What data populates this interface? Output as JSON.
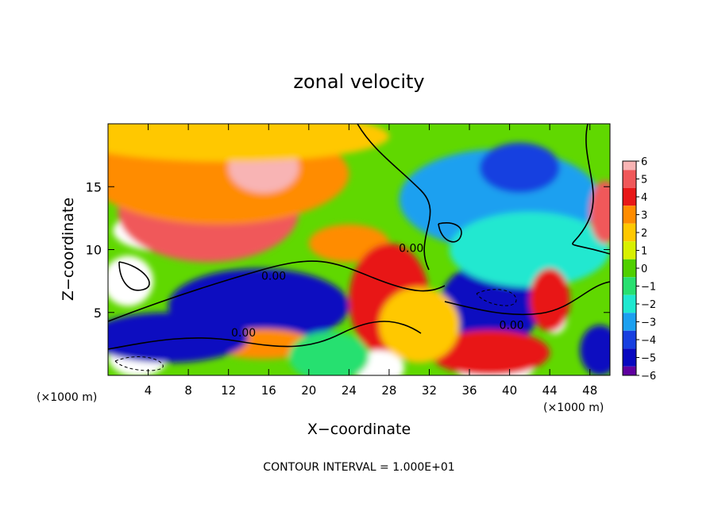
{
  "chart_data": {
    "type": "heatmap",
    "title": "zonal velocity",
    "xlabel": "X−coordinate",
    "ylabel": "Z−coordinate",
    "x_unit_left": "(×1000 m)",
    "x_unit_right": "(×1000 m)",
    "footer": "CONTOUR INTERVAL = 1.000E+01",
    "xlim": [
      0,
      50
    ],
    "ylim": [
      0,
      20
    ],
    "x_ticks": [
      4,
      8,
      12,
      16,
      20,
      24,
      28,
      32,
      36,
      40,
      44,
      48
    ],
    "y_ticks": [
      5,
      10,
      15
    ],
    "colorbar": {
      "ticks": [
        "6",
        "5",
        "4",
        "3",
        "2",
        "1",
        "0",
        "−1",
        "−2",
        "−3",
        "−4",
        "−5",
        "−6"
      ],
      "range": [
        -6,
        6
      ],
      "colors": [
        "#f8b4b4",
        "#f0585a",
        "#e81818",
        "#ff8c00",
        "#ffc800",
        "#d8f000",
        "#50d000",
        "#28e070",
        "#20e8d0",
        "#1ca0f0",
        "#1840e0",
        "#0808c0",
        "#6000a0",
        "#b000b0"
      ]
    },
    "contour_labels": [
      {
        "text": "0.00",
        "x": 16.5,
        "y": 7.6
      },
      {
        "text": "0.00",
        "x": 13.5,
        "y": 3.1
      },
      {
        "text": "0.00",
        "x": 40.2,
        "y": 3.7
      },
      {
        "text": "0.00",
        "x": 30.2,
        "y": 9.8
      }
    ],
    "field_features": [
      {
        "value": 7,
        "x": 6,
        "y": 11.5,
        "rx": 5.5,
        "ry": 1.7
      },
      {
        "value": 5,
        "x": 10,
        "y": 13,
        "rx": 9,
        "ry": 4
      },
      {
        "value": 3,
        "x": 11,
        "y": 16,
        "rx": 13,
        "ry": 4
      },
      {
        "value": 6,
        "x": 15.5,
        "y": 16.5,
        "rx": 3.5,
        "ry": 2
      },
      {
        "value": 2,
        "x": 12,
        "y": 19,
        "rx": 16,
        "ry": 2
      },
      {
        "value": 3,
        "x": 24,
        "y": 10.5,
        "rx": 4,
        "ry": 1.5
      },
      {
        "value": 7,
        "x": 2,
        "y": 7.5,
        "rx": 2.5,
        "ry": 2
      },
      {
        "value": -7,
        "x": 17,
        "y": 6.5,
        "rx": 4,
        "ry": 1.8
      },
      {
        "value": -5,
        "x": 15,
        "y": 5.5,
        "rx": 9,
        "ry": 3
      },
      {
        "value": 7,
        "x": 28,
        "y": 7,
        "rx": 2.6,
        "ry": 2.8
      },
      {
        "value": 4,
        "x": 28,
        "y": 6,
        "rx": 4,
        "ry": 4.5
      },
      {
        "value": -7,
        "x": 37.5,
        "y": 6,
        "rx": 3.2,
        "ry": 2.3
      },
      {
        "value": -5,
        "x": 38,
        "y": 5.5,
        "rx": 5,
        "ry": 3.5
      },
      {
        "value": -3,
        "x": 39,
        "y": 14,
        "rx": 10,
        "ry": 4
      },
      {
        "value": -4,
        "x": 41,
        "y": 16.5,
        "rx": 4,
        "ry": 2
      },
      {
        "value": -2,
        "x": 42,
        "y": 10,
        "rx": 8,
        "ry": 3
      },
      {
        "value": 7,
        "x": 3,
        "y": 1.5,
        "rx": 3,
        "ry": 1.6
      },
      {
        "value": 3,
        "x": 15.5,
        "y": 2.5,
        "rx": 5,
        "ry": 1.2
      },
      {
        "value": -5,
        "x": 6,
        "y": 3,
        "rx": 8,
        "ry": 2
      },
      {
        "value": 7,
        "x": 27,
        "y": 0.6,
        "rx": 2.5,
        "ry": 1.4
      },
      {
        "value": 7,
        "x": 38.5,
        "y": 0.8,
        "rx": 4,
        "ry": 1.6
      },
      {
        "value": 4,
        "x": 38,
        "y": 1.8,
        "rx": 6,
        "ry": 1.8
      },
      {
        "value": 7,
        "x": 44.5,
        "y": 4.5,
        "rx": 1.2,
        "ry": 1.2
      },
      {
        "value": 4,
        "x": 44,
        "y": 6,
        "rx": 2,
        "ry": 2.5
      },
      {
        "value": 5,
        "x": 49.5,
        "y": 13,
        "rx": 1.5,
        "ry": 2.5
      },
      {
        "value": -5,
        "x": 49,
        "y": 2,
        "rx": 2,
        "ry": 2
      },
      {
        "value": 2,
        "x": 31,
        "y": 4,
        "rx": 4,
        "ry": 3
      },
      {
        "value": -1,
        "x": 22,
        "y": 1.5,
        "rx": 4,
        "ry": 2
      }
    ]
  }
}
